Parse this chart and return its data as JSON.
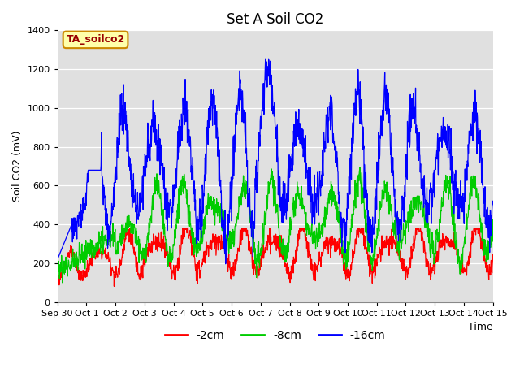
{
  "title": "Set A Soil CO2",
  "ylabel": "Soil CO2 (mV)",
  "xlabel": "Time",
  "ylim": [
    0,
    1400
  ],
  "yticks": [
    0,
    200,
    400,
    600,
    800,
    1000,
    1200,
    1400
  ],
  "xtick_labels": [
    "Sep 30",
    "Oct 1",
    "Oct 2",
    "Oct 3",
    "Oct 4",
    "Oct 5",
    "Oct 6",
    "Oct 7",
    "Oct 8",
    "Oct 9",
    "Oct 10",
    "Oct 11",
    "Oct 12",
    "Oct 13",
    "Oct 14",
    "Oct 15"
  ],
  "legend_label": "TA_soilco2",
  "legend_entries": [
    "-2cm",
    "-8cm",
    "-16cm"
  ],
  "line_colors": [
    "#ff0000",
    "#00cc00",
    "#0000ff"
  ],
  "background_color": "#e0e0e0",
  "title_fontsize": 12,
  "axis_label_fontsize": 9,
  "tick_label_fontsize": 8
}
